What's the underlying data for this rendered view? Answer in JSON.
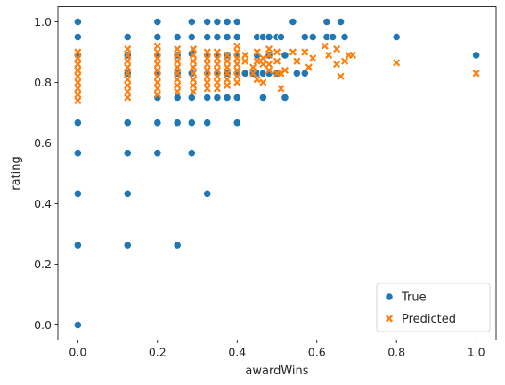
{
  "chart_data": {
    "type": "scatter",
    "xlabel": "awardWins",
    "ylabel": "rating",
    "xlim": [
      -0.05,
      1.05
    ],
    "ylim": [
      -0.05,
      1.05
    ],
    "xticks": [
      "0.0",
      "0.2",
      "0.4",
      "0.6",
      "0.8",
      "1.0"
    ],
    "yticks": [
      "0.0",
      "0.2",
      "0.4",
      "0.6",
      "0.8",
      "1.0"
    ],
    "grid": false,
    "legend_position": "lower-right",
    "series": [
      {
        "name": "True",
        "marker": "circle",
        "color": "#1f77b4",
        "points": [
          [
            0.0,
            1.0
          ],
          [
            0.0,
            0.95
          ],
          [
            0.0,
            0.89
          ],
          [
            0.0,
            0.667
          ],
          [
            0.0,
            0.567
          ],
          [
            0.0,
            0.433
          ],
          [
            0.0,
            0.263
          ],
          [
            0.0,
            0.0
          ],
          [
            0.125,
            0.95
          ],
          [
            0.125,
            0.89
          ],
          [
            0.125,
            0.83
          ],
          [
            0.125,
            0.667
          ],
          [
            0.125,
            0.567
          ],
          [
            0.125,
            0.433
          ],
          [
            0.125,
            0.263
          ],
          [
            0.2,
            1.0
          ],
          [
            0.2,
            0.95
          ],
          [
            0.2,
            0.89
          ],
          [
            0.2,
            0.83
          ],
          [
            0.2,
            0.75
          ],
          [
            0.2,
            0.667
          ],
          [
            0.2,
            0.567
          ],
          [
            0.25,
            0.95
          ],
          [
            0.25,
            0.89
          ],
          [
            0.25,
            0.83
          ],
          [
            0.25,
            0.75
          ],
          [
            0.25,
            0.667
          ],
          [
            0.25,
            0.263
          ],
          [
            0.286,
            1.0
          ],
          [
            0.286,
            0.95
          ],
          [
            0.286,
            0.895
          ],
          [
            0.286,
            0.83
          ],
          [
            0.286,
            0.75
          ],
          [
            0.286,
            0.667
          ],
          [
            0.286,
            0.567
          ],
          [
            0.325,
            1.0
          ],
          [
            0.325,
            0.95
          ],
          [
            0.325,
            0.89
          ],
          [
            0.325,
            0.83
          ],
          [
            0.325,
            0.75
          ],
          [
            0.325,
            0.667
          ],
          [
            0.325,
            0.433
          ],
          [
            0.35,
            1.0
          ],
          [
            0.35,
            0.95
          ],
          [
            0.35,
            0.89
          ],
          [
            0.35,
            0.83
          ],
          [
            0.35,
            0.75
          ],
          [
            0.375,
            1.0
          ],
          [
            0.375,
            0.95
          ],
          [
            0.375,
            0.89
          ],
          [
            0.375,
            0.83
          ],
          [
            0.375,
            0.75
          ],
          [
            0.4,
            1.0
          ],
          [
            0.4,
            0.95
          ],
          [
            0.4,
            0.89
          ],
          [
            0.4,
            0.83
          ],
          [
            0.4,
            0.75
          ],
          [
            0.4,
            0.667
          ],
          [
            0.42,
            0.83
          ],
          [
            0.44,
            0.83
          ],
          [
            0.45,
            0.95
          ],
          [
            0.45,
            0.89
          ],
          [
            0.45,
            0.83
          ],
          [
            0.465,
            0.95
          ],
          [
            0.465,
            0.83
          ],
          [
            0.465,
            0.75
          ],
          [
            0.48,
            0.95
          ],
          [
            0.48,
            0.89
          ],
          [
            0.48,
            0.83
          ],
          [
            0.5,
            0.95
          ],
          [
            0.5,
            0.83
          ],
          [
            0.51,
            0.95
          ],
          [
            0.52,
            0.89
          ],
          [
            0.52,
            0.75
          ],
          [
            0.54,
            1.0
          ],
          [
            0.55,
            0.83
          ],
          [
            0.57,
            0.95
          ],
          [
            0.57,
            0.83
          ],
          [
            0.59,
            0.95
          ],
          [
            0.625,
            1.0
          ],
          [
            0.625,
            0.95
          ],
          [
            0.64,
            0.95
          ],
          [
            0.66,
            1.0
          ],
          [
            0.67,
            0.95
          ],
          [
            0.8,
            0.95
          ],
          [
            1.0,
            0.89
          ]
        ]
      },
      {
        "name": "Predicted",
        "marker": "x",
        "color": "#ff7f0e",
        "points": [
          [
            0.0,
            0.9
          ],
          [
            0.0,
            0.88
          ],
          [
            0.0,
            0.86
          ],
          [
            0.0,
            0.84
          ],
          [
            0.0,
            0.82
          ],
          [
            0.0,
            0.8
          ],
          [
            0.0,
            0.78
          ],
          [
            0.0,
            0.76
          ],
          [
            0.0,
            0.74
          ],
          [
            0.125,
            0.91
          ],
          [
            0.125,
            0.89
          ],
          [
            0.125,
            0.87
          ],
          [
            0.125,
            0.85
          ],
          [
            0.125,
            0.83
          ],
          [
            0.125,
            0.81
          ],
          [
            0.125,
            0.79
          ],
          [
            0.125,
            0.77
          ],
          [
            0.125,
            0.75
          ],
          [
            0.2,
            0.92
          ],
          [
            0.2,
            0.9
          ],
          [
            0.2,
            0.88
          ],
          [
            0.2,
            0.86
          ],
          [
            0.2,
            0.84
          ],
          [
            0.2,
            0.82
          ],
          [
            0.2,
            0.8
          ],
          [
            0.2,
            0.78
          ],
          [
            0.2,
            0.76
          ],
          [
            0.25,
            0.91
          ],
          [
            0.25,
            0.89
          ],
          [
            0.25,
            0.87
          ],
          [
            0.25,
            0.85
          ],
          [
            0.25,
            0.83
          ],
          [
            0.25,
            0.81
          ],
          [
            0.25,
            0.79
          ],
          [
            0.25,
            0.77
          ],
          [
            0.29,
            0.91
          ],
          [
            0.29,
            0.89
          ],
          [
            0.29,
            0.87
          ],
          [
            0.29,
            0.85
          ],
          [
            0.29,
            0.83
          ],
          [
            0.29,
            0.81
          ],
          [
            0.29,
            0.79
          ],
          [
            0.29,
            0.77
          ],
          [
            0.325,
            0.9
          ],
          [
            0.325,
            0.88
          ],
          [
            0.325,
            0.86
          ],
          [
            0.325,
            0.84
          ],
          [
            0.325,
            0.82
          ],
          [
            0.325,
            0.8
          ],
          [
            0.325,
            0.78
          ],
          [
            0.35,
            0.9
          ],
          [
            0.35,
            0.88
          ],
          [
            0.35,
            0.86
          ],
          [
            0.35,
            0.84
          ],
          [
            0.35,
            0.82
          ],
          [
            0.35,
            0.8
          ],
          [
            0.35,
            0.78
          ],
          [
            0.375,
            0.89
          ],
          [
            0.375,
            0.87
          ],
          [
            0.375,
            0.85
          ],
          [
            0.375,
            0.83
          ],
          [
            0.375,
            0.81
          ],
          [
            0.375,
            0.79
          ],
          [
            0.4,
            0.92
          ],
          [
            0.4,
            0.9
          ],
          [
            0.4,
            0.88
          ],
          [
            0.4,
            0.86
          ],
          [
            0.4,
            0.84
          ],
          [
            0.4,
            0.82
          ],
          [
            0.4,
            0.8
          ],
          [
            0.42,
            0.89
          ],
          [
            0.42,
            0.87
          ],
          [
            0.44,
            0.85
          ],
          [
            0.44,
            0.83
          ],
          [
            0.45,
            0.9
          ],
          [
            0.45,
            0.87
          ],
          [
            0.45,
            0.81
          ],
          [
            0.465,
            0.88
          ],
          [
            0.465,
            0.86
          ],
          [
            0.465,
            0.8
          ],
          [
            0.48,
            0.91
          ],
          [
            0.48,
            0.89
          ],
          [
            0.48,
            0.86
          ],
          [
            0.48,
            0.84
          ],
          [
            0.5,
            0.9
          ],
          [
            0.5,
            0.87
          ],
          [
            0.5,
            0.83
          ],
          [
            0.51,
            0.83
          ],
          [
            0.51,
            0.78
          ],
          [
            0.52,
            0.84
          ],
          [
            0.54,
            0.9
          ],
          [
            0.55,
            0.87
          ],
          [
            0.57,
            0.9
          ],
          [
            0.58,
            0.85
          ],
          [
            0.59,
            0.88
          ],
          [
            0.62,
            0.92
          ],
          [
            0.63,
            0.89
          ],
          [
            0.65,
            0.86
          ],
          [
            0.65,
            0.91
          ],
          [
            0.66,
            0.82
          ],
          [
            0.67,
            0.87
          ],
          [
            0.68,
            0.89
          ],
          [
            0.69,
            0.89
          ],
          [
            0.8,
            0.865
          ],
          [
            1.0,
            0.83
          ]
        ]
      }
    ]
  }
}
